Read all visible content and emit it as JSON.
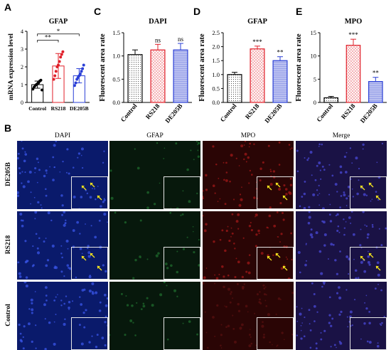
{
  "panels": {
    "A": "A",
    "B": "B",
    "C": "C",
    "D": "D",
    "E": "E"
  },
  "chart_data": [
    {
      "panel": "A",
      "type": "scatter",
      "title": "GFAP",
      "ylabel": "mRNA expression level",
      "categories": [
        "Control",
        "RS218",
        "DE205B"
      ],
      "ylim": [
        0,
        4
      ],
      "yticks": [
        "0",
        "1",
        "2",
        "3",
        "4"
      ],
      "means": [
        1.0,
        2.05,
        1.5
      ],
      "errors": [
        0.2,
        0.7,
        0.4
      ],
      "colors": [
        "#000000",
        "#e0202a",
        "#2a3fd6"
      ],
      "points": [
        [
          0.75,
          0.85,
          0.95,
          1.0,
          1.05,
          1.1,
          1.2,
          1.25,
          0.7
        ],
        [
          1.3,
          1.5,
          1.75,
          2.0,
          2.1,
          2.3,
          2.55,
          2.7,
          2.85
        ],
        [
          0.95,
          1.1,
          1.3,
          1.4,
          1.5,
          1.6,
          1.75,
          1.9,
          2.1
        ]
      ],
      "brackets": [
        {
          "from": "Control",
          "to": "RS218",
          "label": "**"
        },
        {
          "from": "Control",
          "to": "DE205B",
          "label": "*"
        }
      ]
    },
    {
      "panel": "C",
      "type": "bar",
      "title": "DAPI",
      "ylabel": "Fluorescent area rate",
      "categories": [
        "Control",
        "RS218",
        "DE205B"
      ],
      "values": [
        1.03,
        1.13,
        1.13
      ],
      "errors": [
        0.1,
        0.12,
        0.14
      ],
      "ylim": [
        0,
        1.5
      ],
      "yticks": [
        "0.0",
        "0.5",
        "1.0",
        "1.5"
      ],
      "significance": [
        "",
        "ns",
        "ns"
      ],
      "colors": [
        "#000000",
        "#e0202a",
        "#2a3fd6"
      ]
    },
    {
      "panel": "D",
      "type": "bar",
      "title": "GFAP",
      "ylabel": "Fluorescent area rate",
      "categories": [
        "Control",
        "RS218",
        "DE205B"
      ],
      "values": [
        1.0,
        1.92,
        1.5
      ],
      "errors": [
        0.08,
        0.1,
        0.14
      ],
      "ylim": [
        0,
        2.5
      ],
      "yticks": [
        "0.0",
        "0.5",
        "1.0",
        "1.5",
        "2.0",
        "2.5"
      ],
      "significance": [
        "",
        "***",
        "**"
      ],
      "colors": [
        "#000000",
        "#e0202a",
        "#2a3fd6"
      ]
    },
    {
      "panel": "E",
      "type": "bar",
      "title": "MPO",
      "ylabel": "Fluorescent area rate",
      "categories": [
        "Control",
        "RS218",
        "DE205B"
      ],
      "values": [
        1.0,
        12.3,
        4.5
      ],
      "errors": [
        0.3,
        1.3,
        0.9
      ],
      "ylim": [
        0,
        15
      ],
      "yticks": [
        "0",
        "5",
        "10",
        "15"
      ],
      "significance": [
        "",
        "***",
        "**"
      ],
      "colors": [
        "#000000",
        "#e0202a",
        "#2a3fd6"
      ]
    }
  ],
  "micrograph": {
    "columns": [
      "DAPI",
      "GFAP",
      "MPO",
      "Merge"
    ],
    "rows": [
      "DE205B",
      "RS218",
      "Control"
    ],
    "tile_colors": {
      "DAPI": "#0a1a6b",
      "GFAP": "#07180c",
      "MPO": "#2a0505",
      "Merge": "#1a1245"
    },
    "arrow_color": "#f2e21c"
  }
}
